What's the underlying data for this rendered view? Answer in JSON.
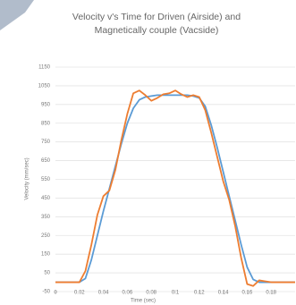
{
  "chart_data": {
    "type": "line",
    "title": "Velocity v's Time for Driven (Airside) and Magnetically couple (Vacside)",
    "x_label": "Time (sec)",
    "y_label": "Velocity (mm/sec)",
    "x": [
      0,
      0.005,
      0.01,
      0.015,
      0.02,
      0.025,
      0.03,
      0.035,
      0.04,
      0.045,
      0.05,
      0.055,
      0.06,
      0.065,
      0.07,
      0.075,
      0.08,
      0.085,
      0.09,
      0.095,
      0.1,
      0.105,
      0.11,
      0.115,
      0.12,
      0.125,
      0.13,
      0.135,
      0.14,
      0.145,
      0.15,
      0.155,
      0.16,
      0.165,
      0.17,
      0.175,
      0.18,
      0.185,
      0.19,
      0.195,
      0.2
    ],
    "series": [
      {
        "color": "#5b9bd5",
        "values": [
          0,
          0,
          0,
          0,
          0,
          20,
          120,
          250,
          380,
          500,
          620,
          740,
          850,
          930,
          975,
          990,
          995,
          1000,
          1000,
          1000,
          1000,
          1000,
          1000,
          995,
          985,
          940,
          840,
          720,
          590,
          460,
          330,
          200,
          80,
          15,
          0,
          0,
          0,
          0,
          0,
          0,
          0
        ]
      },
      {
        "color": "#ed7d31",
        "values": [
          0,
          0,
          0,
          0,
          0,
          60,
          200,
          360,
          460,
          490,
          600,
          760,
          900,
          1010,
          1025,
          1000,
          970,
          985,
          1005,
          1010,
          1025,
          1005,
          990,
          1000,
          990,
          920,
          800,
          670,
          540,
          440,
          300,
          130,
          -10,
          -20,
          10,
          5,
          0,
          0,
          0,
          0,
          0
        ]
      }
    ],
    "xlim": [
      0,
      0.2
    ],
    "xticks": [
      0,
      0.02,
      0.04,
      0.06,
      0.08,
      0.1,
      0.12,
      0.14,
      0.16,
      0.18
    ],
    "ylim": [
      -50,
      1150
    ],
    "yticks": [
      -50,
      50,
      150,
      250,
      350,
      450,
      550,
      650,
      750,
      850,
      950,
      1050,
      1150
    ],
    "grid": true
  }
}
